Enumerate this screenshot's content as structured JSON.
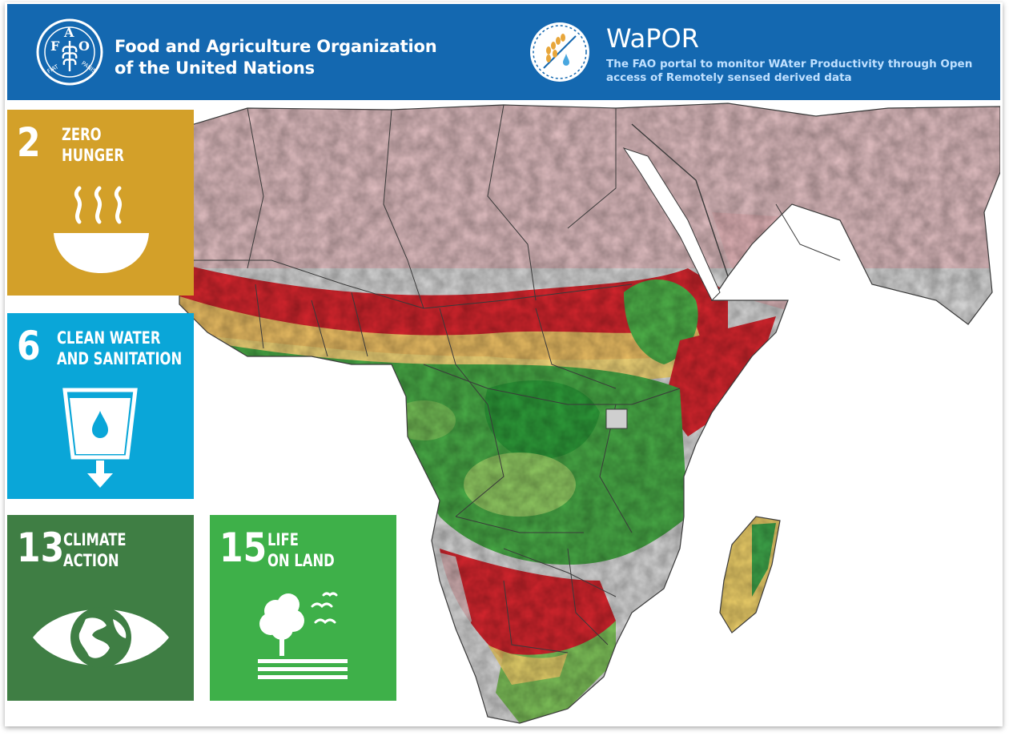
{
  "header": {
    "fao_logo_name": "fao-logo",
    "org_name_line1": "Food and Agriculture Organization",
    "org_name_line2": "of the United Nations",
    "portal_title": "WaPOR",
    "portal_subtitle_line1": "The FAO portal to monitor WAter Productivity through Open",
    "portal_subtitle_line2": "access of Remotely sensed derived data"
  },
  "sdg_tiles": [
    {
      "number": "2",
      "title_line1": "ZERO",
      "title_line2": "HUNGER",
      "color": "#d3a029",
      "icon": "soup-bowl-icon"
    },
    {
      "number": "6",
      "title_line1": "CLEAN WATER",
      "title_line2": "AND SANITATION",
      "color": "#0aa6d8",
      "icon": "water-glass-icon"
    },
    {
      "number": "13",
      "title_line1": "CLIMATE",
      "title_line2": "ACTION",
      "color": "#3f7e44",
      "icon": "eye-globe-icon"
    },
    {
      "number": "15",
      "title_line1": "LIFE",
      "title_line2": "ON LAND",
      "color": "#3eb049",
      "icon": "tree-birds-icon"
    }
  ],
  "map": {
    "region": "Africa and the Near East",
    "colors": {
      "high": "#2e9e3a",
      "mid": "#f2d36b",
      "low": "#d8262e",
      "none": "#d9d9d9",
      "desert_tint": "#e6b4b8",
      "ocean": "#ffffff",
      "border": "#3a3a3a"
    }
  },
  "colors": {
    "banner": "#1468b0",
    "banner_text": "#ffffff",
    "subtitle_text": "#bfe0ff"
  }
}
